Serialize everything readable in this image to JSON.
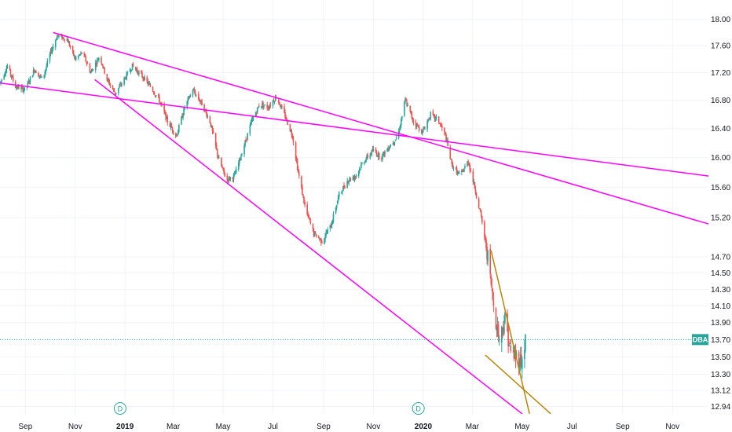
{
  "chart_data": {
    "type": "candlestick",
    "symbol": "DBA",
    "last_price": 13.7,
    "ylim": [
      12.85,
      18.3
    ],
    "log_scale": true,
    "grid": true,
    "price_ticks": [
      "18.00",
      "17.60",
      "17.20",
      "16.80",
      "16.40",
      "16.00",
      "15.60",
      "15.20",
      "14.70",
      "14.50",
      "14.30",
      "14.10",
      "13.90",
      "13.70",
      "13.50",
      "13.30",
      "13.12",
      "12.94"
    ],
    "price_tick_values": [
      18.0,
      17.6,
      17.2,
      16.8,
      16.4,
      16.0,
      15.6,
      15.2,
      14.7,
      14.5,
      14.3,
      14.1,
      13.9,
      13.7,
      13.5,
      13.3,
      13.12,
      12.94
    ],
    "x_range": [
      "2018-08-01",
      "2020-12-15"
    ],
    "month_labels": [
      {
        "date": "2018-09-01",
        "label": "Sep",
        "bold": false
      },
      {
        "date": "2018-11-01",
        "label": "Nov",
        "bold": false
      },
      {
        "date": "2019-01-01",
        "label": "2019",
        "bold": true
      },
      {
        "date": "2019-03-01",
        "label": "Mar",
        "bold": false
      },
      {
        "date": "2019-05-01",
        "label": "May",
        "bold": false
      },
      {
        "date": "2019-07-01",
        "label": "Jul",
        "bold": false
      },
      {
        "date": "2019-09-01",
        "label": "Sep",
        "bold": false
      },
      {
        "date": "2019-11-01",
        "label": "Nov",
        "bold": false
      },
      {
        "date": "2020-01-01",
        "label": "2020",
        "bold": true
      },
      {
        "date": "2020-03-01",
        "label": "Mar",
        "bold": false
      },
      {
        "date": "2020-05-01",
        "label": "May",
        "bold": false
      },
      {
        "date": "2020-07-01",
        "label": "Jul",
        "bold": false
      },
      {
        "date": "2020-09-01",
        "label": "Sep",
        "bold": false
      },
      {
        "date": "2020-11-01",
        "label": "Nov",
        "bold": false
      }
    ],
    "dividend_markers": [
      {
        "date": "2018-12-26",
        "label": "D"
      },
      {
        "date": "2019-12-26",
        "label": "D"
      }
    ],
    "price_path": [
      [
        "2018-08-01",
        17.05
      ],
      [
        "2018-08-10",
        17.3
      ],
      [
        "2018-08-20",
        17.0
      ],
      [
        "2018-09-01",
        16.95
      ],
      [
        "2018-09-12",
        17.25
      ],
      [
        "2018-09-22",
        17.1
      ],
      [
        "2018-10-02",
        17.5
      ],
      [
        "2018-10-10",
        17.75
      ],
      [
        "2018-10-22",
        17.7
      ],
      [
        "2018-11-01",
        17.4
      ],
      [
        "2018-11-10",
        17.5
      ],
      [
        "2018-11-20",
        17.2
      ],
      [
        "2018-12-01",
        17.45
      ],
      [
        "2018-12-10",
        17.1
      ],
      [
        "2018-12-20",
        16.9
      ],
      [
        "2018-12-31",
        17.1
      ],
      [
        "2019-01-10",
        17.3
      ],
      [
        "2019-01-22",
        17.15
      ],
      [
        "2019-02-01",
        17.0
      ],
      [
        "2019-02-12",
        16.8
      ],
      [
        "2019-02-22",
        16.5
      ],
      [
        "2019-03-05",
        16.3
      ],
      [
        "2019-03-15",
        16.7
      ],
      [
        "2019-03-25",
        16.95
      ],
      [
        "2019-04-05",
        16.75
      ],
      [
        "2019-04-15",
        16.5
      ],
      [
        "2019-04-25",
        16.0
      ],
      [
        "2019-05-05",
        15.7
      ],
      [
        "2019-05-15",
        15.75
      ],
      [
        "2019-05-25",
        16.1
      ],
      [
        "2019-06-05",
        16.5
      ],
      [
        "2019-06-15",
        16.75
      ],
      [
        "2019-06-25",
        16.7
      ],
      [
        "2019-07-05",
        16.85
      ],
      [
        "2019-07-15",
        16.6
      ],
      [
        "2019-07-25",
        16.3
      ],
      [
        "2019-08-01",
        15.8
      ],
      [
        "2019-08-10",
        15.3
      ],
      [
        "2019-08-20",
        15.0
      ],
      [
        "2019-08-30",
        14.9
      ],
      [
        "2019-09-10",
        15.1
      ],
      [
        "2019-09-20",
        15.5
      ],
      [
        "2019-10-01",
        15.7
      ],
      [
        "2019-10-10",
        15.75
      ],
      [
        "2019-10-20",
        15.95
      ],
      [
        "2019-11-01",
        16.1
      ],
      [
        "2019-11-10",
        16.0
      ],
      [
        "2019-11-20",
        16.15
      ],
      [
        "2019-12-01",
        16.3
      ],
      [
        "2019-12-10",
        16.8
      ],
      [
        "2019-12-20",
        16.5
      ],
      [
        "2019-12-31",
        16.35
      ],
      [
        "2020-01-10",
        16.6
      ],
      [
        "2020-01-20",
        16.5
      ],
      [
        "2020-01-28",
        16.3
      ],
      [
        "2020-02-05",
        15.9
      ],
      [
        "2020-02-15",
        15.75
      ],
      [
        "2020-02-25",
        15.95
      ],
      [
        "2020-03-05",
        15.55
      ],
      [
        "2020-03-12",
        15.2
      ],
      [
        "2020-03-20",
        14.7
      ],
      [
        "2020-03-27",
        14.1
      ],
      [
        "2020-04-03",
        13.7
      ],
      [
        "2020-04-10",
        13.95
      ],
      [
        "2020-04-17",
        13.55
      ],
      [
        "2020-04-24",
        13.5
      ],
      [
        "2020-05-01",
        13.45
      ],
      [
        "2020-05-05",
        13.7
      ]
    ],
    "trendlines": [
      {
        "color": "#ff00ff",
        "from": [
          "2018-10-05",
          17.8
        ],
        "to": [
          "2020-12-15",
          15.12
        ]
      },
      {
        "color": "#ff00ff",
        "from": [
          "2018-08-01",
          17.05
        ],
        "to": [
          "2020-12-15",
          15.75
        ]
      },
      {
        "color": "#ff00ff",
        "from": [
          "2018-11-25",
          17.1
        ],
        "to": [
          "2020-05-01",
          12.86
        ]
      },
      {
        "color": "#b8860b",
        "from": [
          "2020-03-24",
          14.78
        ],
        "to": [
          "2020-05-10",
          12.86
        ]
      },
      {
        "color": "#b8860b",
        "from": [
          "2020-03-17",
          13.52
        ],
        "to": [
          "2020-06-05",
          12.86
        ]
      }
    ],
    "colors": {
      "up": "#26a69a",
      "down": "#ef5350",
      "grid": "#f0f3fa",
      "last_line": "#26a69a",
      "text": "#131722"
    }
  }
}
